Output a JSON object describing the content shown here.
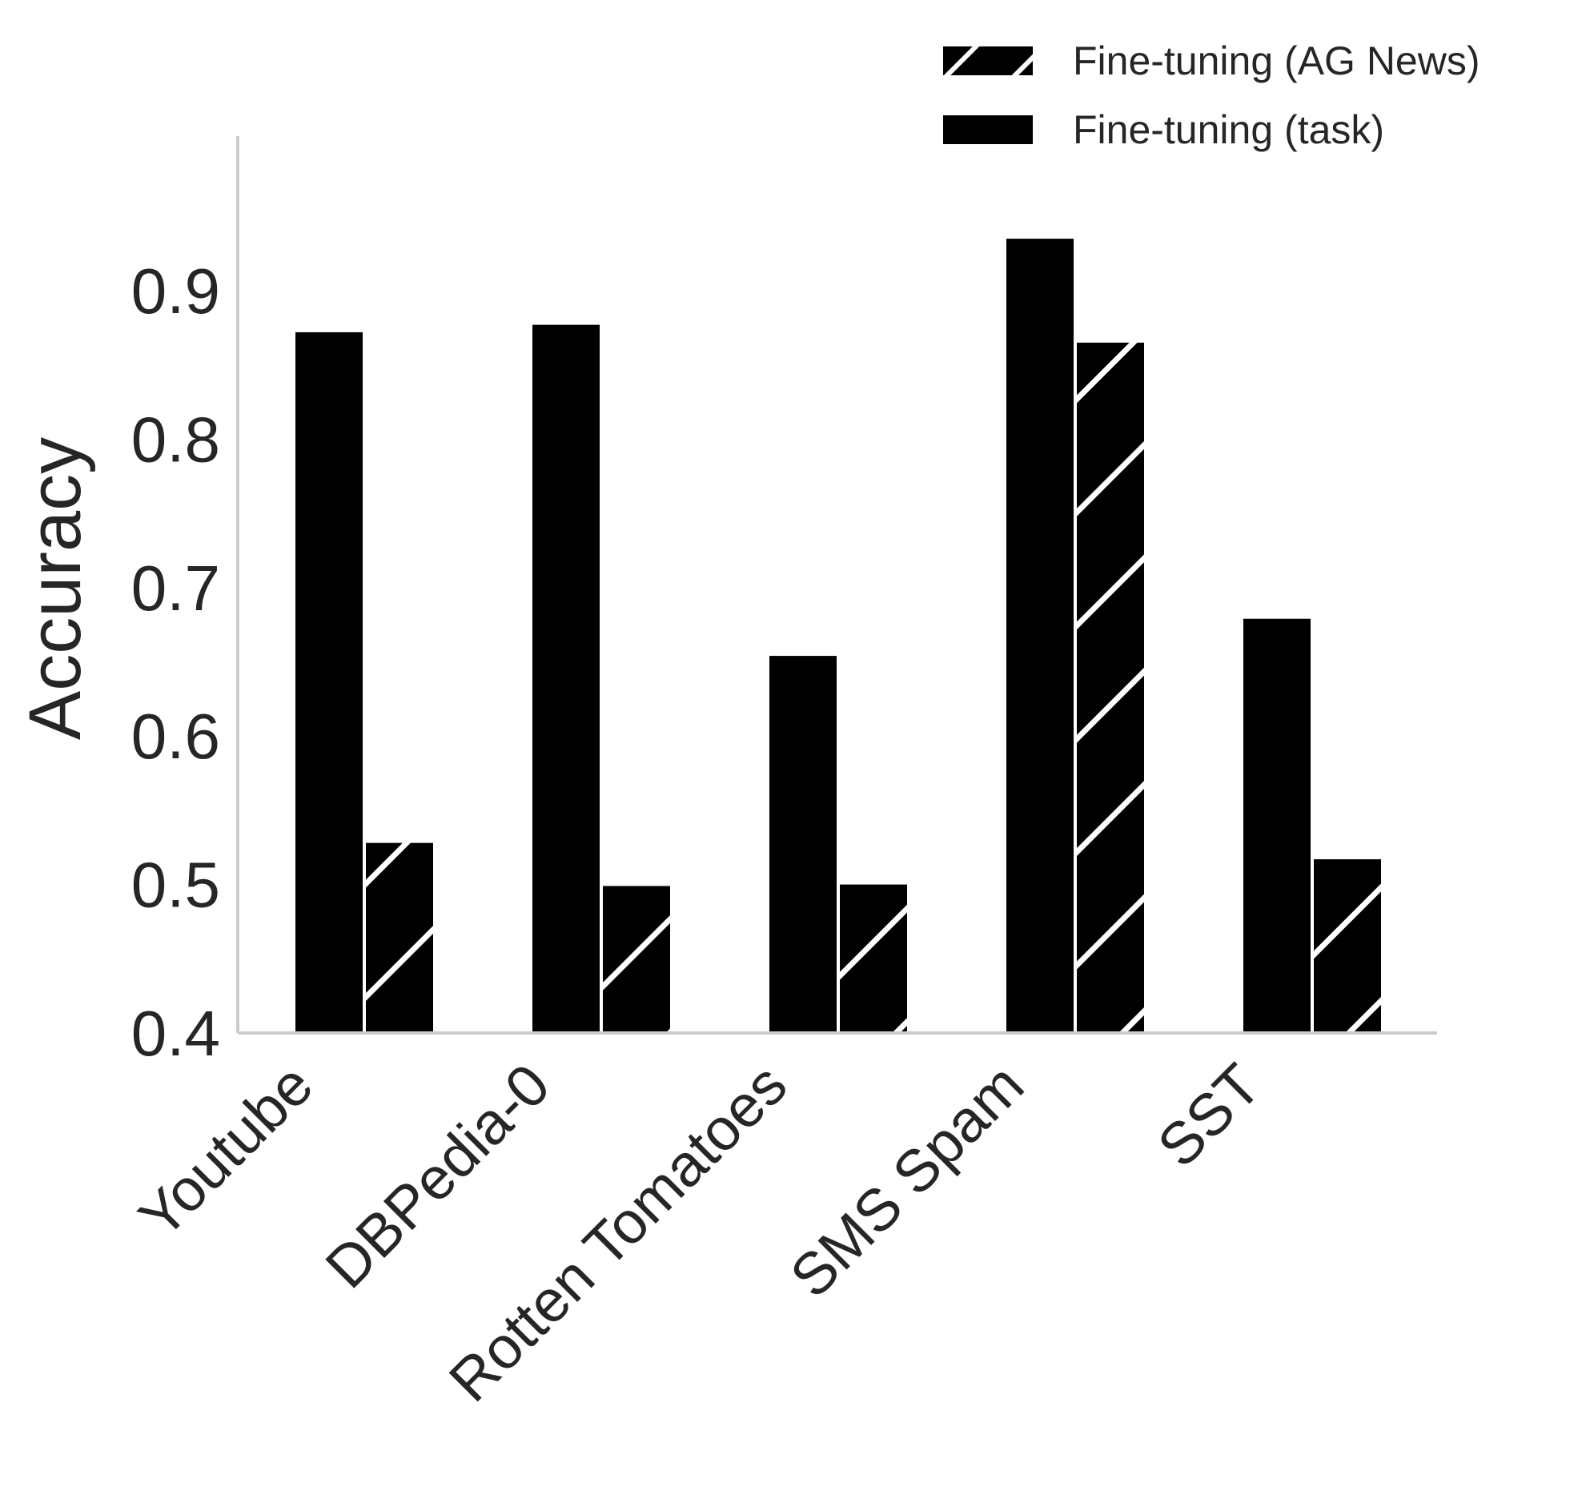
{
  "chart_data": {
    "type": "bar",
    "title": "",
    "xlabel": "",
    "ylabel": "Accuracy",
    "categories": [
      "Youtube",
      "DBPedia-0",
      "Rotten Tomatoes",
      "SMS Spam",
      "SST"
    ],
    "series": [
      {
        "name": "Fine-tuning (task)",
        "values": [
          0.872,
          0.877,
          0.654,
          0.935,
          0.679
        ],
        "fill": "#000000",
        "hatch": false
      },
      {
        "name": "Fine-tuning (AG News)",
        "values": [
          0.528,
          0.499,
          0.5,
          0.865,
          0.517
        ],
        "fill": "#000000",
        "hatch": true
      }
    ],
    "ylim": [
      0.4,
      1.0
    ],
    "yticks": [
      "0.4",
      "0.5",
      "0.6",
      "0.7",
      "0.8",
      "0.9"
    ],
    "ytick_values": [
      0.4,
      0.5,
      0.6,
      0.7,
      0.8,
      0.9
    ],
    "grid": false,
    "legend_position": "top-right",
    "legend_order": [
      "Fine-tuning (AG News)",
      "Fine-tuning (task)"
    ],
    "colors": {
      "bar": "#000000",
      "hatch": "#ffffff",
      "text": "#262626",
      "spine": "#cccccc"
    }
  }
}
